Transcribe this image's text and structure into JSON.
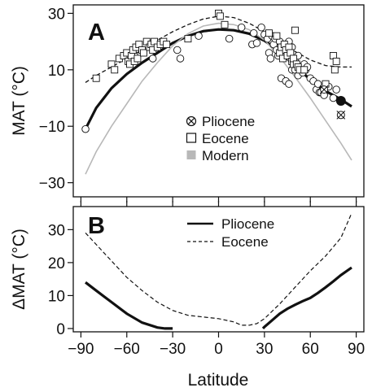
{
  "chart_data": [
    {
      "panel": "A",
      "type": "scatter",
      "ylabel": "MAT (°C)",
      "xlim": [
        -95,
        95
      ],
      "ylim": [
        -35,
        33
      ],
      "yticks": [
        "30",
        "10",
        "−10",
        "−30"
      ],
      "ytick_values": [
        30,
        10,
        -10,
        -30
      ],
      "xtick_values": [
        -90,
        -60,
        -30,
        0,
        30,
        60,
        90
      ],
      "legend": {
        "position": "center-right",
        "entries": [
          {
            "label": "Pliocene",
            "marker": "circle-cross"
          },
          {
            "label": "Eocene",
            "marker": "open-square"
          },
          {
            "label": "Modern",
            "marker": "gray-square"
          }
        ]
      },
      "series": [
        {
          "name": "Pliocene",
          "kind": "fit-line",
          "color": "#111111",
          "x": [
            -87,
            -80,
            -70,
            -60,
            -50,
            -40,
            -30,
            -20,
            -10,
            0,
            10,
            20,
            30,
            40,
            50,
            60,
            70,
            80,
            87
          ],
          "y": [
            -11,
            -3.5,
            3.5,
            8.5,
            12.5,
            16,
            19.5,
            22,
            23.7,
            24.3,
            24,
            22.8,
            20.3,
            16.5,
            11.5,
            6.5,
            2.5,
            -0.5,
            -3
          ]
        },
        {
          "name": "Eocene",
          "kind": "fit-line",
          "color": "#111111",
          "x": [
            -87,
            -80,
            -70,
            -60,
            -50,
            -40,
            -30,
            -20,
            -10,
            0,
            10,
            20,
            30,
            40,
            50,
            60,
            70,
            80,
            87
          ],
          "y": [
            5.5,
            8,
            11,
            14,
            17,
            20.5,
            23.5,
            26,
            28,
            29,
            28.5,
            26.5,
            23.5,
            20,
            16.5,
            13.5,
            11.5,
            11,
            11
          ]
        },
        {
          "name": "Modern",
          "kind": "fit-line",
          "color": "#b8b8b8",
          "x": [
            -87,
            -80,
            -70,
            -60,
            -50,
            -40,
            -30,
            -20,
            -10,
            0,
            10,
            20,
            30,
            40,
            50,
            60,
            70,
            80,
            87
          ],
          "y": [
            -27,
            -19,
            -10,
            -2,
            6,
            12.5,
            18.5,
            22.8,
            25.5,
            26.5,
            26,
            24.2,
            20.5,
            14.5,
            7.5,
            0,
            -8,
            -16,
            -22
          ]
        },
        {
          "name": "Pliocene",
          "kind": "points-circle",
          "x": [
            -87,
            -55,
            -43,
            -27,
            -25,
            -13,
            7,
            15,
            22,
            23,
            25,
            28,
            30,
            32,
            33,
            34,
            35,
            36,
            37,
            38,
            39,
            40,
            41,
            41,
            42,
            43,
            44,
            45,
            46,
            46,
            47,
            48,
            48,
            49,
            50,
            50,
            52,
            52,
            54,
            55,
            56,
            57,
            58,
            60,
            62,
            64,
            65,
            66,
            67,
            69,
            72,
            75,
            77
          ],
          "y": [
            -11,
            15,
            14,
            17,
            14,
            22,
            21,
            25,
            19,
            23,
            19.5,
            25,
            22.5,
            21,
            16,
            14,
            22,
            19,
            21,
            17,
            15,
            20,
            18,
            7,
            16,
            15,
            6,
            18,
            20,
            5,
            14,
            18,
            10,
            12,
            13,
            10,
            15,
            8,
            10,
            9,
            12,
            10,
            11,
            7,
            6,
            3,
            5,
            2,
            2,
            1,
            4,
            0,
            3
          ]
        },
        {
          "name": "Eocene",
          "kind": "points-square",
          "x": [
            -80,
            -70,
            -68,
            -65,
            -62,
            -60,
            -59,
            -58,
            -57,
            -56,
            -55,
            -54,
            -53,
            -52,
            -50,
            -49,
            -47,
            -45,
            -44,
            -43,
            -42,
            -40,
            -38,
            -36,
            -34,
            -20,
            0,
            1,
            4,
            33,
            38,
            40,
            41,
            42,
            43,
            44,
            45,
            46,
            47,
            48,
            49,
            49,
            50,
            51,
            52,
            53,
            56,
            70,
            75,
            76,
            77
          ],
          "y": [
            7,
            12,
            10,
            14,
            15,
            16,
            13,
            12,
            15,
            17,
            13,
            18,
            14,
            19,
            17,
            16,
            20,
            18,
            19,
            17,
            20,
            18,
            19,
            20,
            19,
            21,
            30,
            29,
            26,
            23,
            22,
            16,
            18,
            14,
            19,
            17,
            15,
            18,
            16,
            13,
            12,
            14,
            24,
            12,
            11,
            10,
            10,
            5,
            15,
            10,
            13
          ]
        },
        {
          "name": "Pliocene",
          "kind": "points-crossed-circle",
          "x": [
            69,
            80
          ],
          "y": [
            3,
            -6
          ]
        },
        {
          "name": "Pliocene",
          "kind": "points-filled-circle",
          "x": [
            80
          ],
          "y": [
            -1
          ]
        }
      ]
    },
    {
      "panel": "B",
      "type": "line",
      "xlabel": "Latitude",
      "ylabel": "ΔMAT (°C)",
      "xlim": [
        -95,
        95
      ],
      "ylim": [
        -1,
        37
      ],
      "xticks": [
        "−90",
        "−60",
        "−30",
        "0",
        "30",
        "60",
        "90"
      ],
      "xtick_values": [
        -90,
        -60,
        -30,
        0,
        30,
        60,
        90
      ],
      "yticks": [
        "30",
        "20",
        "10",
        "0"
      ],
      "ytick_values": [
        30,
        20,
        10,
        0
      ],
      "legend": {
        "position": "top-right",
        "entries": [
          {
            "label": "Pliocene",
            "style": "solid"
          },
          {
            "label": "Eocene",
            "style": "dashed"
          }
        ]
      },
      "series": [
        {
          "name": "Pliocene",
          "style": "solid",
          "x": [
            -87,
            -80,
            -70,
            -60,
            -50,
            -40,
            -35,
            -30,
            29,
            30,
            35,
            40,
            45,
            50,
            55,
            60,
            65,
            70,
            75,
            80,
            87
          ],
          "y": [
            14,
            11.5,
            8,
            4.5,
            1.8,
            0.3,
            0,
            0,
            0,
            0.5,
            2.5,
            4.5,
            6,
            7.2,
            8.3,
            9.3,
            10.8,
            12.5,
            14.3,
            16.2,
            18.5
          ]
        },
        {
          "name": "Eocene",
          "style": "dashed",
          "x": [
            -87,
            -80,
            -70,
            -60,
            -50,
            -40,
            -30,
            -20,
            -10,
            0,
            10,
            15,
            20,
            25,
            30,
            40,
            50,
            60,
            70,
            80,
            87
          ],
          "y": [
            29,
            25.5,
            20.5,
            15.5,
            11.5,
            8,
            5.5,
            4,
            3.5,
            3,
            2,
            1,
            1,
            1.5,
            3,
            7.5,
            12.5,
            17.5,
            22,
            27.5,
            35
          ]
        }
      ]
    }
  ]
}
